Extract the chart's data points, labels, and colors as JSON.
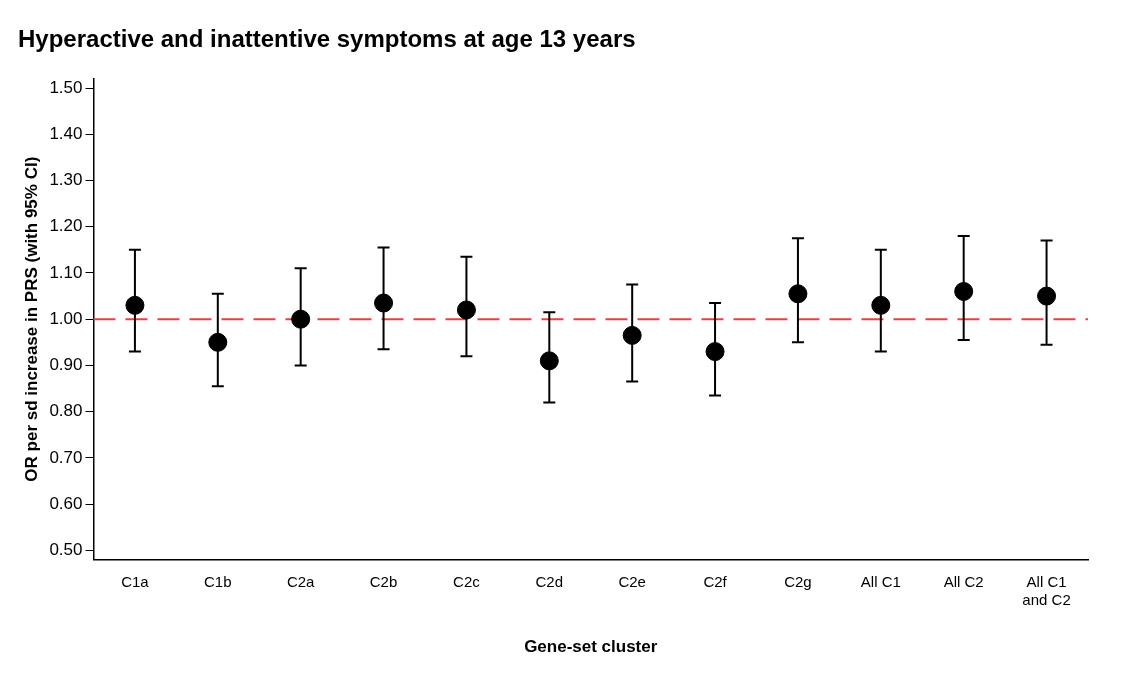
{
  "chart_data": {
    "type": "scatter",
    "title": "Hyperactive and inattentive symptoms at age 13 years",
    "xlabel": "Gene-set cluster",
    "ylabel": "OR per sd increase in PRS (with 95% CI)",
    "categories": [
      "C1a",
      "C1b",
      "C2a",
      "C2b",
      "C2c",
      "C2d",
      "C2e",
      "C2f",
      "C2g",
      "All C1",
      "All C2",
      "All C1 and C2"
    ],
    "series": [
      {
        "color": "#000000",
        "values": [
          1.03,
          0.95,
          1.0,
          1.035,
          1.02,
          0.91,
          0.965,
          0.93,
          1.055,
          1.03,
          1.06,
          1.05
        ],
        "errors": [
          [
            0.93,
            1.15
          ],
          [
            0.855,
            1.055
          ],
          [
            0.9,
            1.11
          ],
          [
            0.935,
            1.155
          ],
          [
            0.92,
            1.135
          ],
          [
            0.82,
            1.015
          ],
          [
            0.865,
            1.075
          ],
          [
            0.835,
            1.035
          ],
          [
            0.95,
            1.175
          ],
          [
            0.93,
            1.15
          ],
          [
            0.955,
            1.18
          ],
          [
            0.945,
            1.17
          ]
        ]
      }
    ],
    "ylim": [
      0.48,
      1.52
    ],
    "yticks": [
      {
        "value": 0.5,
        "label": "0.50"
      },
      {
        "value": 0.6,
        "label": "0.60"
      },
      {
        "value": 0.7,
        "label": "0.70"
      },
      {
        "value": 0.8,
        "label": "0.80"
      },
      {
        "value": 0.9,
        "label": "0.90"
      },
      {
        "value": 1.0,
        "label": "1.00"
      },
      {
        "value": 1.1,
        "label": "1.10"
      },
      {
        "value": 1.2,
        "label": "1.20"
      },
      {
        "value": 1.3,
        "label": "1.30"
      },
      {
        "value": 1.4,
        "label": "1.40"
      },
      {
        "value": 1.5,
        "label": "1.50"
      }
    ],
    "ref_lines": [
      {
        "axis": "y",
        "value": 1.0,
        "color": "#e8413a",
        "line_style": "dashed"
      }
    ],
    "grid": false,
    "legend": false,
    "marker": "circle"
  }
}
